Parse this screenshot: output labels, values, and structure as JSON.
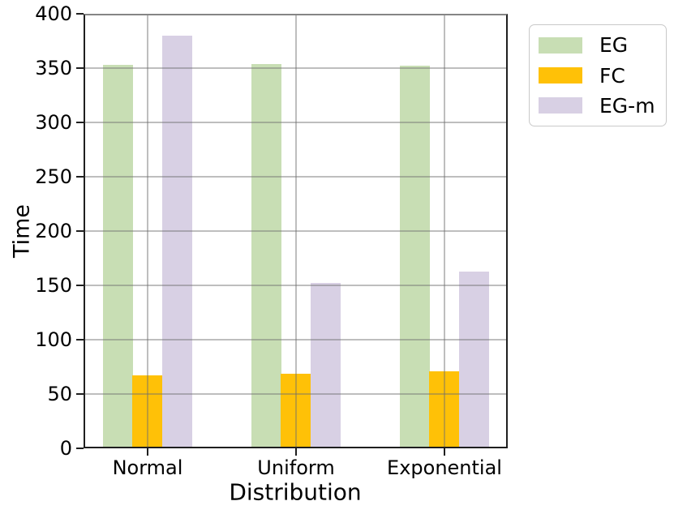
{
  "chart_data": {
    "type": "bar",
    "title": "",
    "xlabel": "Distribution",
    "ylabel": "Time",
    "categories": [
      "Normal",
      "Uniform",
      "Exponential"
    ],
    "series": [
      {
        "name": "EG",
        "color": "#c8deb4",
        "values": [
          353,
          354,
          352
        ]
      },
      {
        "name": "FC",
        "color": "#ffc107",
        "values": [
          67,
          69,
          71
        ]
      },
      {
        "name": "EG-m",
        "color": "#d8d0e4",
        "values": [
          380,
          152,
          163
        ]
      }
    ],
    "ylim": [
      0,
      400
    ],
    "yticks": [
      0,
      50,
      100,
      150,
      200,
      250,
      300,
      350,
      400
    ],
    "grid": true,
    "grid_over_bars": true,
    "legend_position": "outside-upper-right",
    "colors": {
      "spine": "#1f1f1f",
      "top_spine": "#858585",
      "gridline": "#b5b5b5",
      "background": "#ffffff",
      "text": "#000000"
    }
  }
}
